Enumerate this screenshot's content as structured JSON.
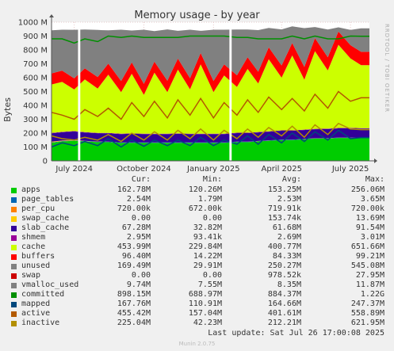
{
  "chart_data": {
    "type": "area",
    "title": "Memory usage - by year",
    "ylabel": "Bytes",
    "watermark": "RRDTOOL / TOBI OETIKER",
    "ylim": [
      0,
      1000
    ],
    "yunit": "M",
    "yticks": [
      {
        "v": 0,
        "label": "0"
      },
      {
        "v": 100,
        "label": "100 M"
      },
      {
        "v": 200,
        "label": "200 M"
      },
      {
        "v": 300,
        "label": "300 M"
      },
      {
        "v": 400,
        "label": "400 M"
      },
      {
        "v": 500,
        "label": "500 M"
      },
      {
        "v": 600,
        "label": "600 M"
      },
      {
        "v": 700,
        "label": "700 M"
      },
      {
        "v": 800,
        "label": "800 M"
      },
      {
        "v": 900,
        "label": "900 M"
      },
      {
        "v": 1000,
        "label": "1000 M"
      }
    ],
    "xrange": [
      "2024-06-01",
      "2025-07-26"
    ],
    "xticks": [
      {
        "date": "2024-07-01",
        "label": "July 2024"
      },
      {
        "date": "2024-10-01",
        "label": "October 2024"
      },
      {
        "date": "2025-01-01",
        "label": "January 2025"
      },
      {
        "date": "2025-04-01",
        "label": "April 2025"
      },
      {
        "date": "2025-07-01",
        "label": "July 2025"
      }
    ],
    "dates": [
      "2024-06-01",
      "2024-06-15",
      "2024-07-01",
      "2024-07-15",
      "2024-08-01",
      "2024-08-15",
      "2024-09-01",
      "2024-09-15",
      "2024-10-01",
      "2024-10-15",
      "2024-11-01",
      "2024-11-15",
      "2024-12-01",
      "2024-12-15",
      "2025-01-01",
      "2025-01-15",
      "2025-02-01",
      "2025-02-15",
      "2025-03-01",
      "2025-03-15",
      "2025-04-01",
      "2025-04-15",
      "2025-05-01",
      "2025-05-15",
      "2025-06-01",
      "2025-06-15",
      "2025-07-01",
      "2025-07-15",
      "2025-07-26"
    ],
    "gaps": [
      [
        "2024-07-06",
        "2024-07-09"
      ],
      [
        "2025-01-22",
        "2025-01-25"
      ]
    ],
    "stacked_series": [
      {
        "name": "apps",
        "color": "#00cc00",
        "values": [
          130,
          140,
          145,
          140,
          135,
          135,
          130,
          130,
          130,
          130,
          130,
          130,
          130,
          130,
          130,
          130,
          135,
          135,
          140,
          145,
          150,
          150,
          155,
          160,
          160,
          165,
          165,
          163,
          163
        ]
      },
      {
        "name": "page_tables",
        "color": "#0066b3",
        "values": [
          2.5,
          2.5,
          2.5,
          2.5,
          2.5,
          2.5,
          2.5,
          2.5,
          2.5,
          2.5,
          2.5,
          2.5,
          2.5,
          2.5,
          2.5,
          2.5,
          2.5,
          2.5,
          2.5,
          2.5,
          2.5,
          2.5,
          2.5,
          2.5,
          2.5,
          2.5,
          2.5,
          2.5,
          2.5
        ]
      },
      {
        "name": "per_cpu",
        "color": "#ff8000",
        "values": [
          0.7,
          0.7,
          0.7,
          0.7,
          0.7,
          0.7,
          0.7,
          0.7,
          0.7,
          0.7,
          0.7,
          0.7,
          0.7,
          0.7,
          0.7,
          0.7,
          0.7,
          0.7,
          0.7,
          0.7,
          0.7,
          0.7,
          0.7,
          0.7,
          0.7,
          0.7,
          0.7,
          0.7,
          0.7
        ]
      },
      {
        "name": "swap_cache",
        "color": "#ffcc00",
        "values": [
          5,
          3,
          2,
          1,
          1,
          0,
          0,
          0,
          0,
          0,
          0,
          0,
          0,
          0,
          0,
          0,
          0,
          0,
          0,
          0,
          0,
          0,
          0,
          0,
          0,
          0,
          0,
          0,
          0
        ]
      },
      {
        "name": "slab_cache",
        "color": "#330099",
        "values": [
          60,
          60,
          62,
          60,
          60,
          60,
          60,
          62,
          60,
          60,
          60,
          62,
          60,
          60,
          60,
          60,
          62,
          62,
          62,
          62,
          64,
          64,
          64,
          65,
          66,
          66,
          67,
          67,
          67
        ]
      },
      {
        "name": "shmem",
        "color": "#990099",
        "values": [
          2.7,
          2.7,
          2.7,
          2.7,
          2.7,
          2.7,
          2.7,
          2.7,
          2.7,
          2.7,
          2.7,
          2.7,
          2.7,
          2.7,
          2.7,
          2.7,
          2.7,
          2.7,
          2.7,
          2.7,
          2.7,
          2.7,
          2.7,
          2.9,
          2.9,
          2.9,
          2.95,
          2.95,
          2.95
        ]
      },
      {
        "name": "cache",
        "color": "#ccff00",
        "values": [
          350,
          360,
          300,
          380,
          320,
          420,
          300,
          430,
          280,
          440,
          300,
          460,
          320,
          500,
          300,
          420,
          330,
          460,
          350,
          520,
          380,
          540,
          360,
          560,
          420,
          600,
          500,
          454,
          454
        ]
      },
      {
        "name": "buffers",
        "color": "#ff0000",
        "values": [
          80,
          82,
          80,
          80,
          82,
          80,
          80,
          82,
          80,
          80,
          82,
          80,
          80,
          82,
          80,
          80,
          84,
          84,
          85,
          86,
          88,
          90,
          92,
          94,
          95,
          96,
          96,
          96,
          96
        ]
      },
      {
        "name": "unused",
        "color": "#808080",
        "values": [
          310,
          295,
          350,
          280,
          340,
          240,
          370,
          230,
          390,
          220,
          370,
          200,
          350,
          160,
          370,
          250,
          330,
          200,
          300,
          140,
          260,
          120,
          280,
          80,
          200,
          30,
          110,
          170,
          169
        ]
      }
    ],
    "line_series": [
      {
        "name": "committed",
        "color": "#008f00",
        "values": [
          880,
          880,
          850,
          880,
          860,
          900,
          890,
          900,
          890,
          890,
          890,
          890,
          900,
          900,
          900,
          900,
          890,
          890,
          880,
          880,
          880,
          900,
          880,
          900,
          880,
          880,
          900,
          898,
          898
        ]
      },
      {
        "name": "mapped",
        "color": "#00487d",
        "values": [
          100,
          130,
          110,
          140,
          110,
          160,
          100,
          150,
          105,
          150,
          110,
          150,
          110,
          170,
          110,
          150,
          120,
          180,
          120,
          190,
          130,
          200,
          140,
          210,
          150,
          220,
          160,
          168,
          168
        ]
      },
      {
        "name": "active",
        "color": "#b35a00",
        "values": [
          350,
          330,
          300,
          370,
          320,
          380,
          300,
          420,
          320,
          430,
          310,
          440,
          330,
          450,
          310,
          420,
          330,
          440,
          350,
          460,
          370,
          450,
          360,
          480,
          380,
          500,
          430,
          455,
          455
        ]
      },
      {
        "name": "inactive",
        "color": "#b38f00",
        "values": [
          180,
          160,
          150,
          170,
          150,
          190,
          140,
          200,
          150,
          210,
          150,
          220,
          160,
          230,
          150,
          220,
          160,
          230,
          170,
          240,
          180,
          250,
          170,
          260,
          190,
          270,
          230,
          225,
          225
        ]
      }
    ],
    "legend": {
      "headers": [
        "Cur:",
        "Min:",
        "Avg:",
        "Max:"
      ],
      "rows": [
        {
          "name": "apps",
          "color": "#00cc00",
          "cur": "162.78M",
          "min": "120.26M",
          "avg": "153.25M",
          "max": "256.06M"
        },
        {
          "name": "page_tables",
          "color": "#0066b3",
          "cur": "2.54M",
          "min": "1.79M",
          "avg": "2.53M",
          "max": "3.65M"
        },
        {
          "name": "per_cpu",
          "color": "#ff8000",
          "cur": "720.00k",
          "min": "672.00k",
          "avg": "719.91k",
          "max": "720.00k"
        },
        {
          "name": "swap_cache",
          "color": "#ffcc00",
          "cur": "0.00",
          "min": "0.00",
          "avg": "153.74k",
          "max": "13.69M"
        },
        {
          "name": "slab_cache",
          "color": "#330099",
          "cur": "67.28M",
          "min": "32.82M",
          "avg": "61.68M",
          "max": "91.54M"
        },
        {
          "name": "shmem",
          "color": "#990099",
          "cur": "2.95M",
          "min": "93.41k",
          "avg": "2.69M",
          "max": "3.01M"
        },
        {
          "name": "cache",
          "color": "#ccff00",
          "cur": "453.99M",
          "min": "229.84M",
          "avg": "400.77M",
          "max": "651.66M"
        },
        {
          "name": "buffers",
          "color": "#ff0000",
          "cur": "96.40M",
          "min": "14.22M",
          "avg": "84.33M",
          "max": "99.21M"
        },
        {
          "name": "unused",
          "color": "#808080",
          "cur": "169.49M",
          "min": "29.91M",
          "avg": "250.27M",
          "max": "545.08M"
        },
        {
          "name": "swap",
          "color": "#cc0000",
          "cur": "0.00",
          "min": "0.00",
          "avg": "978.52k",
          "max": "27.95M"
        },
        {
          "name": "vmalloc_used",
          "color": "#808080",
          "cur": "9.74M",
          "min": "7.55M",
          "avg": "8.35M",
          "max": "11.87M"
        },
        {
          "name": "committed",
          "color": "#008f00",
          "cur": "898.15M",
          "min": "688.97M",
          "avg": "884.37M",
          "max": "1.22G"
        },
        {
          "name": "mapped",
          "color": "#00487d",
          "cur": "167.76M",
          "min": "110.91M",
          "avg": "164.66M",
          "max": "247.37M"
        },
        {
          "name": "active",
          "color": "#b35a00",
          "cur": "455.42M",
          "min": "157.04M",
          "avg": "401.61M",
          "max": "558.89M"
        },
        {
          "name": "inactive",
          "color": "#b38f00",
          "cur": "225.04M",
          "min": "42.23M",
          "avg": "212.21M",
          "max": "621.95M"
        }
      ]
    },
    "last_update": "Last update: Sat Jul 26 17:00:08 2025",
    "footer": "Munin 2.0.75"
  }
}
